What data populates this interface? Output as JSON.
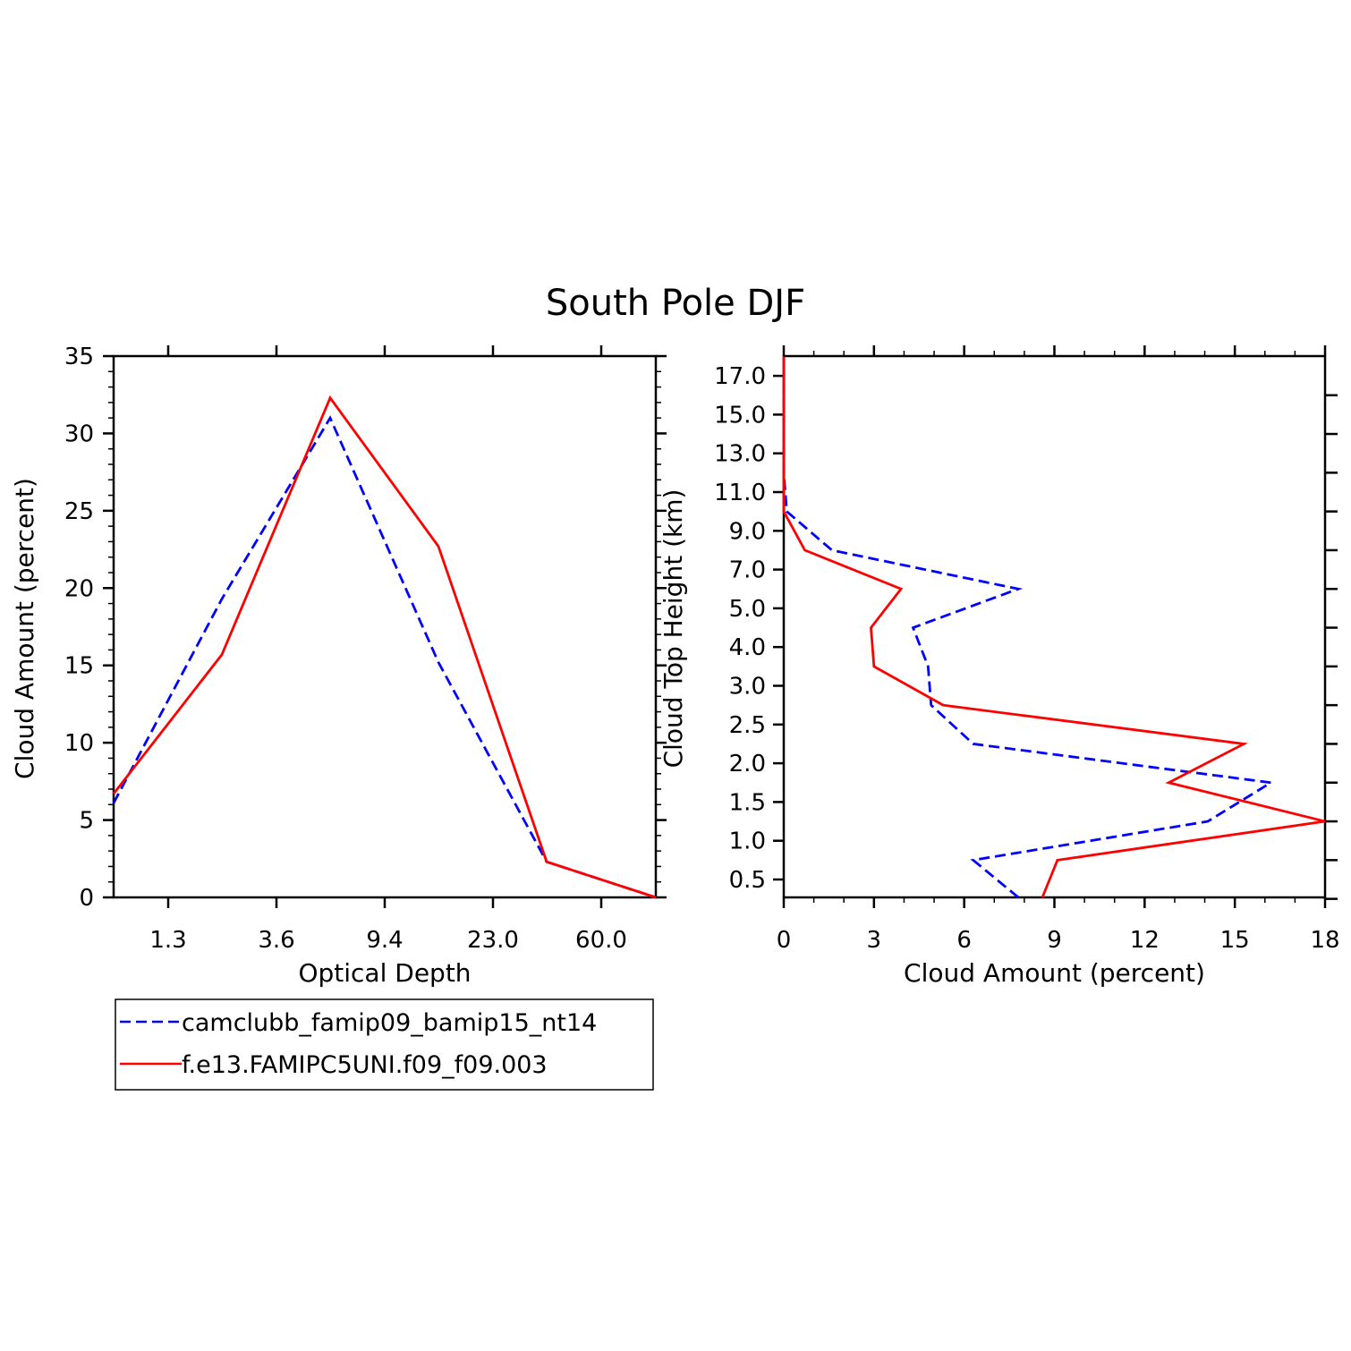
{
  "title": "South Pole DJF",
  "series_styles": [
    {
      "name": "camclubb_famip09_bamip15_nt14",
      "color": "#0000ff",
      "dashed": true
    },
    {
      "name": "f.e13.FAMIPC5UNI.f09_f09.003",
      "color": "#ff0000",
      "dashed": false
    }
  ],
  "legend": {
    "items": [
      {
        "label": "camclubb_famip09_bamip15_nt14"
      },
      {
        "label": "f.e13.FAMIPC5UNI.f09_f09.003"
      }
    ]
  },
  "chart_data": [
    {
      "type": "line",
      "xlabel": "Optical Depth",
      "ylabel": "Cloud Amount (percent)",
      "ylim": [
        0,
        35
      ],
      "yticks": [
        "0",
        "5",
        "10",
        "15",
        "20",
        "25",
        "30",
        "35"
      ],
      "xticks": [
        "1.3",
        "3.6",
        "9.4",
        "23.0",
        "60.0"
      ],
      "x_bins": 7,
      "series": [
        {
          "name": "camclubb_famip09_bamip15_nt14",
          "values": [
            6.1,
            19.3,
            31.0,
            15.2,
            2.3,
            0.0
          ]
        },
        {
          "name": "f.e13.FAMIPC5UNI.f09_f09.003",
          "values": [
            6.7,
            15.7,
            32.3,
            22.7,
            2.3,
            0.0
          ]
        }
      ]
    },
    {
      "type": "line",
      "orientation": "vertical-profile",
      "xlabel": "Cloud Amount (percent)",
      "ylabel": "Cloud Top Height (km)",
      "xlim": [
        0,
        18
      ],
      "xticks": [
        "0",
        "3",
        "6",
        "9",
        "12",
        "15",
        "18"
      ],
      "yticks": [
        "0.5",
        "1.0",
        "1.5",
        "2.0",
        "2.5",
        "3.0",
        "4.0",
        "5.0",
        "7.0",
        "9.0",
        "11.0",
        "13.0",
        "15.0",
        "17.0"
      ],
      "series": [
        {
          "name": "camclubb_famip09_bamip15_nt14",
          "values": [
            7.8,
            6.3,
            14.1,
            16.2,
            6.3,
            4.9,
            4.8,
            4.3,
            7.8,
            1.6,
            0.1,
            0.0,
            0.0,
            0.0,
            0.0
          ]
        },
        {
          "name": "f.e13.FAMIPC5UNI.f09_f09.003",
          "values": [
            8.6,
            9.1,
            18.0,
            12.8,
            15.3,
            5.3,
            3.0,
            2.9,
            3.9,
            0.7,
            0.0,
            0.0,
            0.0,
            0.0,
            0.0
          ]
        }
      ]
    }
  ]
}
